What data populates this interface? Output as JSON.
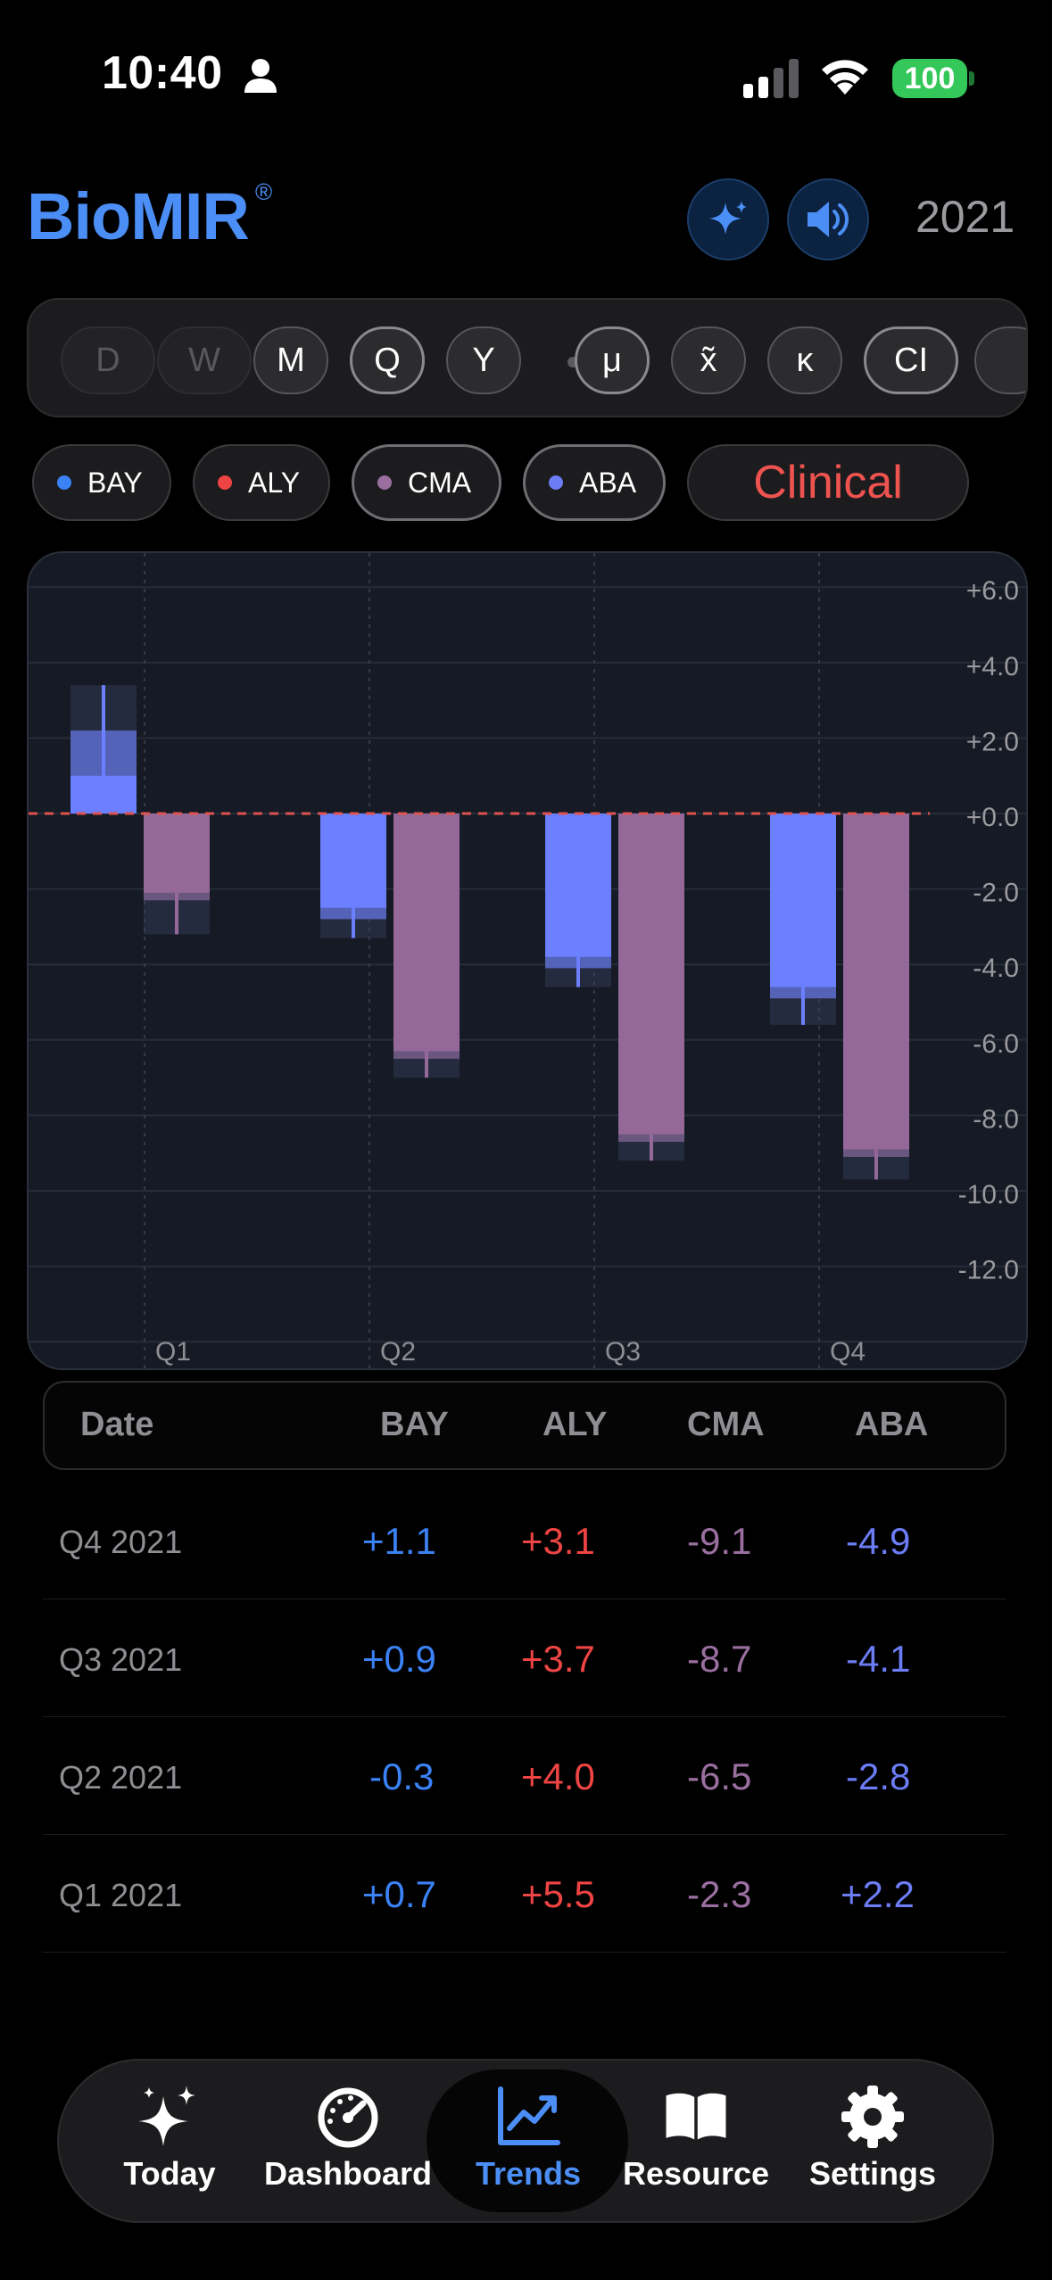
{
  "status_bar": {
    "time": "10:40",
    "battery": "100"
  },
  "header": {
    "brand": "BioMIR",
    "registered": "®",
    "year": "2021"
  },
  "period_selector": {
    "items": [
      {
        "label": "D",
        "state": "disabled"
      },
      {
        "label": "W",
        "state": "disabled"
      },
      {
        "label": "M",
        "state": "normal"
      },
      {
        "label": "Q",
        "state": "selected"
      },
      {
        "label": "Y",
        "state": "normal"
      },
      {
        "label": "μ",
        "state": "normal"
      },
      {
        "label": "x̃",
        "state": "normal"
      },
      {
        "label": "κ",
        "state": "normal"
      },
      {
        "label": "CI",
        "state": "selected"
      }
    ]
  },
  "legend": {
    "items": [
      {
        "label": "BAY",
        "color": "#3b82f6",
        "selected": false
      },
      {
        "label": "ALY",
        "color": "#ef4444",
        "selected": false
      },
      {
        "label": "CMA",
        "color": "#9a6fa0",
        "selected": true
      },
      {
        "label": "ABA",
        "color": "#6b7cf5",
        "selected": true
      }
    ],
    "clinical_label": "Clinical"
  },
  "chart_data": {
    "type": "bar",
    "categories": [
      "Q1",
      "Q2",
      "Q3",
      "Q4"
    ],
    "series": [
      {
        "name": "ABA",
        "color": "#6b7fff",
        "values": [
          2.2,
          -2.8,
          -4.1,
          -4.9
        ],
        "ci_low": [
          1.0,
          -3.3,
          -4.6,
          -5.6
        ],
        "ci_high": [
          3.4,
          -2.5,
          -3.8,
          -4.6
        ]
      },
      {
        "name": "CMA",
        "color": "#94699a",
        "values": [
          -2.3,
          -6.5,
          -8.7,
          -9.1
        ],
        "ci_low": [
          -3.2,
          -7.0,
          -9.2,
          -9.7
        ],
        "ci_high": [
          -2.1,
          -6.3,
          -8.5,
          -8.9
        ]
      }
    ],
    "ylim": [
      -15,
      6.5
    ],
    "yticks": [
      "+6.0",
      "+4.0",
      "+2.0",
      "+0.0",
      "-2.0",
      "-4.0",
      "-6.0",
      "-8.0",
      "-10.0",
      "-12.0"
    ],
    "baseline": 0,
    "baseline_color": "#e0524f",
    "grid": true
  },
  "table": {
    "headers": [
      "Date",
      "BAY",
      "ALY",
      "CMA",
      "ABA"
    ],
    "colors": {
      "BAY": "#3b82f6",
      "ALY": "#ef4444",
      "CMA": "#9a6fa0",
      "ABA": "#6b7cf5"
    },
    "rows": [
      {
        "date": "Q4 2021",
        "BAY": "+1.1",
        "ALY": "+3.1",
        "CMA": "-9.1",
        "ABA": "-4.9"
      },
      {
        "date": "Q3 2021",
        "BAY": "+0.9",
        "ALY": "+3.7",
        "CMA": "-8.7",
        "ABA": "-4.1"
      },
      {
        "date": "Q2 2021",
        "BAY": "-0.3",
        "ALY": "+4.0",
        "CMA": "-6.5",
        "ABA": "-2.8"
      },
      {
        "date": "Q1 2021",
        "BAY": "+0.7",
        "ALY": "+5.5",
        "CMA": "-2.3",
        "ABA": "+2.2"
      }
    ]
  },
  "tab_bar": {
    "items": [
      {
        "label": "Today",
        "icon": "sparkles-icon",
        "active": false
      },
      {
        "label": "Dashboard",
        "icon": "gauge-icon",
        "active": false
      },
      {
        "label": "Trends",
        "icon": "chart-line-icon",
        "active": true
      },
      {
        "label": "Resource",
        "icon": "book-icon",
        "active": false
      },
      {
        "label": "Settings",
        "icon": "gear-icon",
        "active": false
      }
    ]
  }
}
